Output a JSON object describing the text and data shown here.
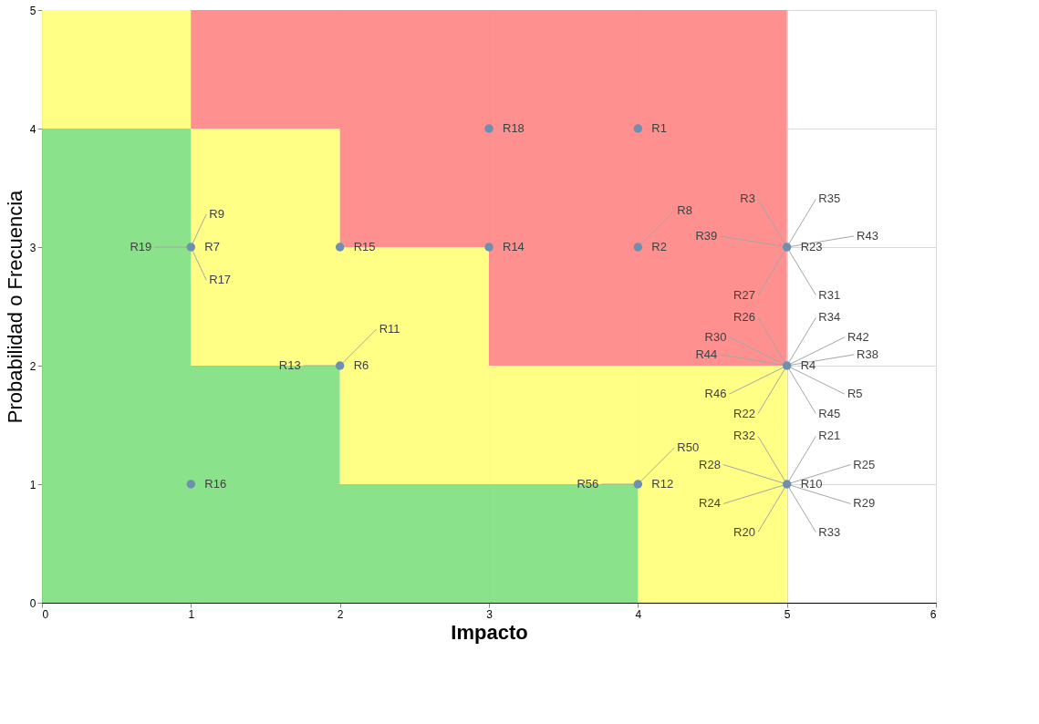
{
  "chart_data": {
    "type": "scatter",
    "xlabel": "Impacto",
    "ylabel": "Probabilidad o Frecuencia",
    "xlim": [
      0,
      6
    ],
    "xticks": [
      0,
      1,
      2,
      3,
      4,
      5,
      6
    ],
    "ylim": [
      0,
      5
    ],
    "yticks": [
      0,
      1,
      2,
      3,
      4,
      5
    ],
    "grid": true,
    "marker": "circle",
    "stacked": true,
    "series": [
      {
        "type": "area",
        "marker": "none",
        "color": "#84e184",
        "x": [
          0,
          1,
          2,
          3,
          4,
          5
        ],
        "values": [
          4,
          2,
          1,
          1,
          0,
          0
        ]
      },
      {
        "type": "area",
        "marker": "none",
        "color": "#ffff80",
        "x": [
          0,
          1,
          2,
          3,
          4,
          5
        ],
        "values": [
          1,
          2,
          2,
          1,
          2,
          2
        ]
      },
      {
        "type": "area",
        "marker": "none",
        "color": "#ff8a8a",
        "x": [
          0,
          1,
          2,
          3,
          4,
          5
        ],
        "values": [
          0,
          1,
          2,
          3,
          3,
          3
        ]
      },
      {
        "color": "#6f8fb0",
        "x": [
          4,
          3,
          4,
          3,
          2,
          1,
          2,
          5,
          5,
          1,
          4,
          5
        ],
        "values": [
          4,
          4,
          3,
          3,
          3,
          3,
          2,
          3,
          2,
          1,
          1,
          1
        ]
      }
    ],
    "annotations": [
      {
        "text": "R1",
        "x": 4,
        "y": 4
      },
      {
        "text": "R18",
        "x": 3,
        "y": 4
      },
      {
        "text": "R2",
        "x": 4,
        "y": 3
      },
      {
        "text": "R8",
        "x": 4,
        "y": 3
      },
      {
        "text": "R14",
        "x": 3,
        "y": 3
      },
      {
        "text": "R15",
        "x": 2,
        "y": 3
      },
      {
        "text": "R7",
        "x": 1,
        "y": 3
      },
      {
        "text": "R17",
        "x": 1,
        "y": 3
      },
      {
        "text": "R9",
        "x": 1,
        "y": 3
      },
      {
        "text": "R19",
        "x": 1,
        "y": 3
      },
      {
        "text": "R6",
        "x": 2,
        "y": 2
      },
      {
        "text": "R11",
        "x": 2,
        "y": 2
      },
      {
        "text": "R13",
        "x": 2,
        "y": 2
      },
      {
        "text": "R23",
        "x": 5,
        "y": 3
      },
      {
        "text": "R31",
        "x": 5,
        "y": 3
      },
      {
        "text": "R43",
        "x": 5,
        "y": 3
      },
      {
        "text": "R35",
        "x": 5,
        "y": 3
      },
      {
        "text": "R27",
        "x": 5,
        "y": 3
      },
      {
        "text": "R39",
        "x": 5,
        "y": 3
      },
      {
        "text": "R3",
        "x": 5,
        "y": 3
      },
      {
        "text": "R4",
        "x": 5,
        "y": 2
      },
      {
        "text": "R45",
        "x": 5,
        "y": 2
      },
      {
        "text": "R5",
        "x": 5,
        "y": 2
      },
      {
        "text": "R38",
        "x": 5,
        "y": 2
      },
      {
        "text": "R42",
        "x": 5,
        "y": 2
      },
      {
        "text": "R34",
        "x": 5,
        "y": 2
      },
      {
        "text": "R22",
        "x": 5,
        "y": 2
      },
      {
        "text": "R46",
        "x": 5,
        "y": 2
      },
      {
        "text": "R44",
        "x": 5,
        "y": 2
      },
      {
        "text": "R30",
        "x": 5,
        "y": 2
      },
      {
        "text": "R26",
        "x": 5,
        "y": 2
      },
      {
        "text": "R16",
        "x": 1,
        "y": 1
      },
      {
        "text": "R12",
        "x": 4,
        "y": 1
      },
      {
        "text": "R50",
        "x": 4,
        "y": 1
      },
      {
        "text": "R56",
        "x": 4,
        "y": 1
      },
      {
        "text": "R10",
        "x": 5,
        "y": 1
      },
      {
        "text": "R33",
        "x": 5,
        "y": 1
      },
      {
        "text": "R29",
        "x": 5,
        "y": 1
      },
      {
        "text": "R25",
        "x": 5,
        "y": 1
      },
      {
        "text": "R21",
        "x": 5,
        "y": 1
      },
      {
        "text": "R20",
        "x": 5,
        "y": 1
      },
      {
        "text": "R24",
        "x": 5,
        "y": 1
      },
      {
        "text": "R28",
        "x": 5,
        "y": 1
      },
      {
        "text": "R32",
        "x": 5,
        "y": 1
      }
    ]
  }
}
